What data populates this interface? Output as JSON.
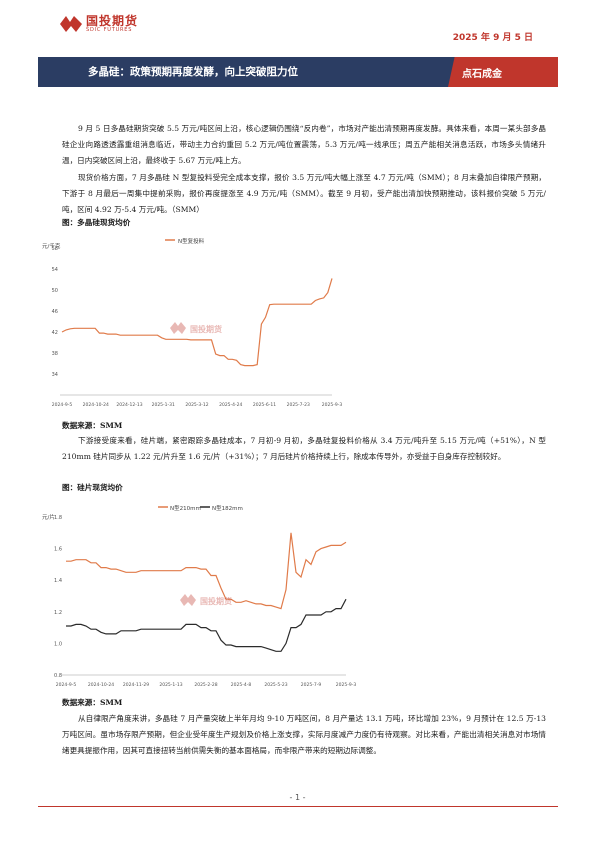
{
  "header": {
    "logo_name": "国投期货",
    "logo_sub": "SDIC FUTURES",
    "date": "2025 年 9 月 5 日"
  },
  "banner": {
    "title": "多晶硅：政策预期再度发酵，向上突破阻力位",
    "tag": "点石成金"
  },
  "body": {
    "p1": "9 月 5 日多晶硅期货突破 5.5 万元/吨区间上沿，核心逻辑仍围绕“反内卷”，市场对产能出清预期再度发酵。具体来看，本周一某头部多晶硅企业向路透透露重组消息临近，带动主力合约重回 5.2 万元/吨位置震荡，5.3 万元/吨一线承压；周五产能相关消息活跃，市场多头情绪升温，日内突破区间上沿，最终收于 5.67 万元/吨上方。",
    "p2": "现货价格方面，7 月多晶硅 N 型复投料受完全成本支撑，报价 3.5 万元/吨大幅上涨至 4.7 万元/吨（SMM）；8 月末叠加自律限产预期，下游于 8 月最后一周集中提前采购，报价再度提涨至 4.9 万元/吨（SMM）。截至 9 月初，受产能出清加快预期推动，该料报价突破 5 万元/吨，区间 4.92 万-5.4 万元/吨。（SMM）",
    "fig1_caption": "图：多晶硅现货均价",
    "fig1_source": "数据来源：SMM",
    "p3": "下游接受度来看，硅片端，紧密跟踪多晶硅成本，7 月初-9 月初，多晶硅复投料价格从 3.4 万元/吨升至 5.15 万元/吨（+51%），N 型 210mm 硅片同步从 1.22 元/片升至 1.6 元/片（+31%）；7 月后硅片价格持续上行，除成本传导外，亦受益于自身库存控制较好。",
    "fig2_caption": "图：硅片现货均价",
    "fig2_source": "数据来源：SMM",
    "p4": "从自律限产角度来讲，多晶硅 7 月产量突破上半年月均 9-10 万吨区间，8 月产量达 13.1 万吨，环比增加 23%，9 月预计在 12.5 万-13 万吨区间。虽市场存限产预期，但企业受年度生产规划及价格上涨支撑，实际月度减产力度仍有待观察。对比来看，产能出清相关消息对市场情绪更具提振作用，因其可直接扭转当前供需失衡的基本面格局，而非限产带来的短期边际调整。"
  },
  "footer": {
    "page": "- 1 -"
  },
  "colors": {
    "brand": "#c0362c",
    "navy": "#2b3d63",
    "series1": "#e07b4a",
    "series2": "#2b2b2b"
  },
  "chart_data": [
    {
      "type": "line",
      "title": "",
      "ylabel": "元/千克",
      "xlabel": "",
      "ylim": [
        30,
        58
      ],
      "yticks": [
        34,
        38,
        42,
        46,
        50,
        54,
        58
      ],
      "grid": false,
      "legend": "top",
      "x_tick_labels": [
        "2024-9-5",
        "2024-10-24",
        "2024-12-13",
        "2025-1-31",
        "2025-3-12",
        "2025-4-24",
        "2025-6-11",
        "2025-7-23",
        "2025-9-3"
      ],
      "series": [
        {
          "name": "N型复投料",
          "values": [
            42,
            42.4,
            42.6,
            42.7,
            42.7,
            42.7,
            42.7,
            42.7,
            42.7,
            41.8,
            41.8,
            41.6,
            41.6,
            41.6,
            41.4,
            41.4,
            41.4,
            41.4,
            41.4,
            41.4,
            41.4,
            41.4,
            41.4,
            41.4,
            40.9,
            40.6,
            40.6,
            40.6,
            40.6,
            40.6,
            40.6,
            40.5,
            40.5,
            40.5,
            40.5,
            40.5,
            40.5,
            37.8,
            37.5,
            37.5,
            36.8,
            36.8,
            36.6,
            35.8,
            35.6,
            35.6,
            35.6,
            35.8,
            43.5,
            44.8,
            47.2,
            47.3,
            47.3,
            47.3,
            47.3,
            47.3,
            47.3,
            47.3,
            47.3,
            47.3,
            47.3,
            48,
            48.3,
            48.5,
            49.5,
            52.2
          ],
          "color": "#e07b4a"
        }
      ]
    },
    {
      "type": "line",
      "title": "",
      "ylabel": "元/片",
      "xlabel": "",
      "ylim": [
        0.8,
        1.8
      ],
      "yticks": [
        0.8,
        1.0,
        1.2,
        1.4,
        1.6,
        1.8
      ],
      "grid": false,
      "legend": "top",
      "x_tick_labels": [
        "2024-9-5",
        "2024-10-24",
        "2024-11-29",
        "2025-1-13",
        "2025-2-28",
        "2025-4-8",
        "2025-5-23",
        "2025-7-9",
        "2025-9-3"
      ],
      "series": [
        {
          "name": "N型210mm",
          "values": [
            1.52,
            1.52,
            1.53,
            1.53,
            1.53,
            1.51,
            1.51,
            1.48,
            1.48,
            1.47,
            1.47,
            1.46,
            1.45,
            1.45,
            1.45,
            1.46,
            1.46,
            1.46,
            1.46,
            1.46,
            1.46,
            1.46,
            1.46,
            1.46,
            1.48,
            1.48,
            1.48,
            1.47,
            1.47,
            1.43,
            1.43,
            1.35,
            1.28,
            1.28,
            1.26,
            1.26,
            1.27,
            1.26,
            1.25,
            1.25,
            1.24,
            1.24,
            1.23,
            1.22,
            1.34,
            1.7,
            1.45,
            1.42,
            1.53,
            1.5,
            1.58,
            1.6,
            1.61,
            1.62,
            1.62,
            1.62,
            1.64
          ],
          "color": "#e07b4a"
        },
        {
          "name": "N型182mm",
          "values": [
            1.11,
            1.11,
            1.12,
            1.12,
            1.11,
            1.09,
            1.09,
            1.07,
            1.06,
            1.06,
            1.06,
            1.08,
            1.08,
            1.08,
            1.08,
            1.09,
            1.09,
            1.09,
            1.09,
            1.09,
            1.09,
            1.09,
            1.09,
            1.09,
            1.12,
            1.12,
            1.12,
            1.1,
            1.1,
            1.08,
            1.08,
            1.02,
            0.99,
            0.99,
            0.98,
            0.98,
            0.98,
            0.98,
            0.98,
            0.98,
            0.97,
            0.96,
            0.95,
            0.95,
            1.0,
            1.1,
            1.1,
            1.12,
            1.18,
            1.18,
            1.18,
            1.18,
            1.2,
            1.2,
            1.22,
            1.22,
            1.28
          ],
          "color": "#2b2b2b"
        }
      ]
    }
  ]
}
